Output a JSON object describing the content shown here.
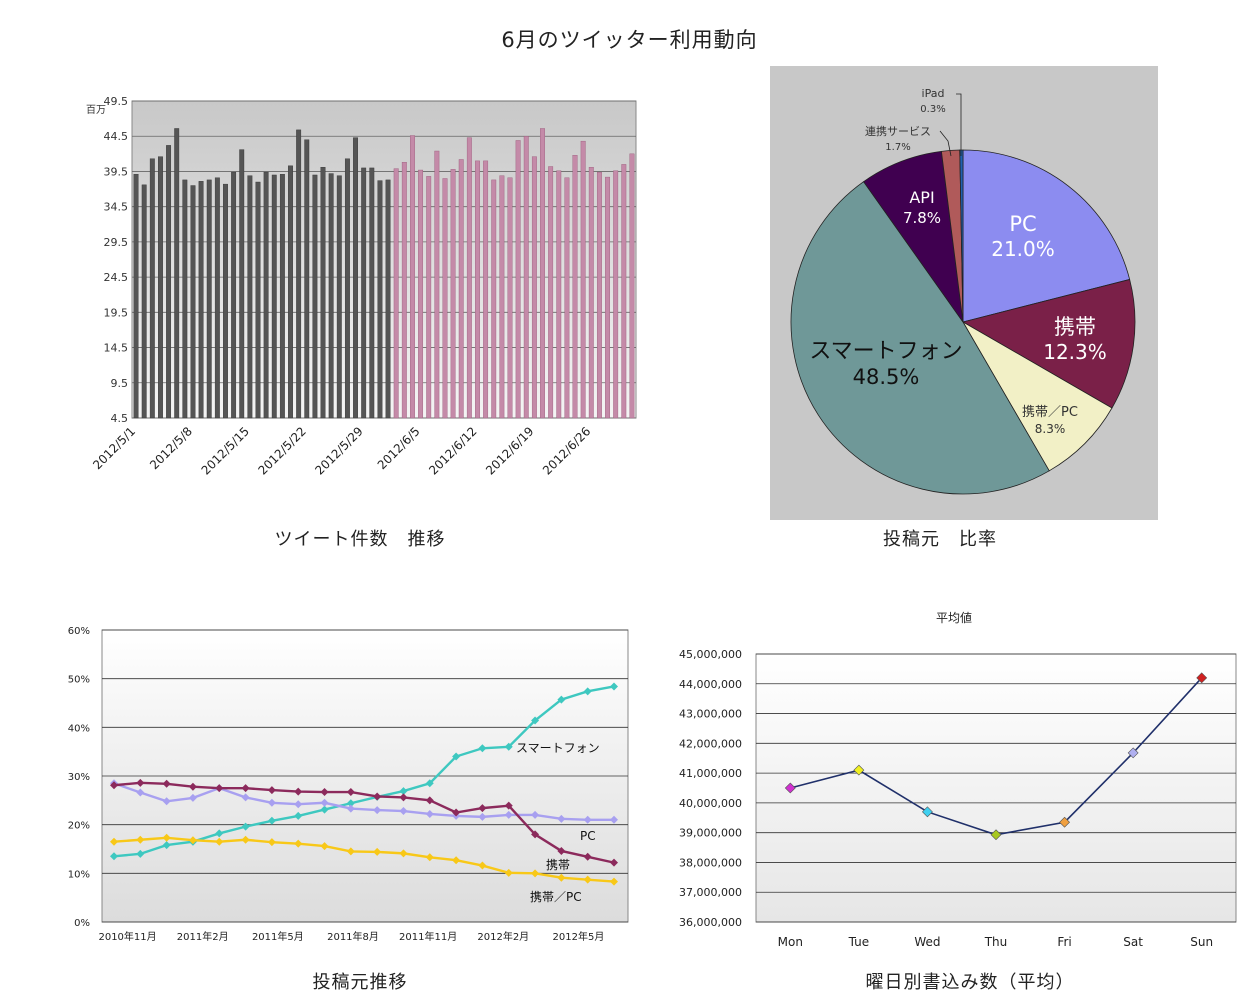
{
  "page_title": "6月のツイッター利用動向",
  "captions": {
    "tweets": "ツイート件数　推移",
    "source_ratio": "投稿元　比率",
    "source_trend": "投稿元推移",
    "weekday": "曜日別書込み数（平均）"
  },
  "chart_data": [
    {
      "id": "tweets",
      "type": "bar",
      "ylabel": "百万",
      "ylim": [
        4.5,
        49.5
      ],
      "yticks": [
        "49.5",
        "44.5",
        "39.5",
        "34.5",
        "29.5",
        "24.5",
        "19.5",
        "14.5",
        "9.5",
        "4.5"
      ],
      "xtick_labels": [
        "2012/5/1",
        "2012/5/8",
        "2012/5/15",
        "2012/5/22",
        "2012/5/29",
        "2012/6/5",
        "2012/6/12",
        "2012/6/19",
        "2012/6/26"
      ],
      "xtick_index": [
        0,
        7,
        14,
        21,
        28,
        35,
        42,
        49,
        56
      ],
      "colors": {
        "may": "#555555",
        "june": "#c48aa8"
      },
      "may_values": [
        39.1,
        37.6,
        41.3,
        41.6,
        43.2,
        45.6,
        38.3,
        37.5,
        38.1,
        38.3,
        38.6,
        37.7,
        39.4,
        42.6,
        38.9,
        38.0,
        39.4,
        39.0,
        39.1,
        40.3,
        45.4,
        44.0,
        39.0,
        40.1,
        39.2,
        38.9,
        41.3,
        44.3,
        40.0,
        40.0,
        38.2,
        38.3
      ],
      "june_values": [
        39.9,
        40.8,
        44.6,
        39.7,
        38.8,
        42.4,
        38.5,
        39.8,
        41.2,
        44.3,
        41.0,
        41.0,
        38.3,
        38.9,
        38.6,
        43.9,
        44.5,
        41.6,
        45.6,
        40.2,
        39.6,
        38.6,
        41.8,
        43.8,
        40.1,
        39.4,
        38.7,
        39.6,
        40.5,
        42.0
      ]
    },
    {
      "id": "source_ratio",
      "type": "pie",
      "slices": [
        {
          "label": "PC",
          "value": 21.0,
          "pct": "21.0%",
          "color": "#8c8cf0"
        },
        {
          "label": "携帯",
          "value": 12.3,
          "pct": "12.3%",
          "color": "#7a2048"
        },
        {
          "label": "携帯／PC",
          "value": 8.3,
          "pct": "8.3%",
          "color": "#f2f0c6"
        },
        {
          "label": "スマートフォン",
          "value": 48.5,
          "pct": "48.5%",
          "color": "#6f9898"
        },
        {
          "label": "API",
          "value": 7.8,
          "pct": "7.8%",
          "color": "#400050"
        },
        {
          "label": "連携サービス",
          "value": 1.7,
          "pct": "1.7%",
          "color": "#b05a5a"
        },
        {
          "label": "iPad",
          "value": 0.3,
          "pct": "0.3%",
          "color": "#2060b0"
        }
      ]
    },
    {
      "id": "source_trend",
      "type": "line",
      "ylim": [
        0,
        60
      ],
      "yticks": [
        "60%",
        "50%",
        "40%",
        "30%",
        "20%",
        "10%",
        "0%"
      ],
      "xtick_labels": [
        "2010年11月",
        "2011年2月",
        "2011年5月",
        "2011年8月",
        "2011年11月",
        "2012年2月",
        "2012年5月"
      ],
      "series": [
        {
          "name": "スマートフォン",
          "color": "#3ec8c0",
          "values": [
            13.5,
            14,
            15.8,
            16.5,
            18.2,
            19.6,
            20.8,
            21.8,
            23.1,
            24.4,
            25.7,
            26.9,
            28.5,
            34,
            35.7,
            36,
            41.4,
            45.7,
            47.4,
            48.4
          ]
        },
        {
          "name": "PC",
          "color": "#a8a0f0",
          "values": [
            28.5,
            26.6,
            24.8,
            25.5,
            27.5,
            25.6,
            24.5,
            24.2,
            24.5,
            23.3,
            23,
            22.8,
            22.2,
            21.8,
            21.6,
            22,
            22,
            21.2,
            21,
            21
          ]
        },
        {
          "name": "携帯",
          "color": "#8c2a5c",
          "values": [
            28.1,
            28.6,
            28.4,
            27.8,
            27.5,
            27.5,
            27.1,
            26.8,
            26.7,
            26.7,
            25.8,
            25.6,
            25,
            22.5,
            23.4,
            23.9,
            18,
            14.6,
            13.4,
            12.2
          ]
        },
        {
          "name": "携帯／PC",
          "color": "#f8c818",
          "values": [
            16.5,
            16.9,
            17.3,
            16.8,
            16.5,
            16.9,
            16.4,
            16.1,
            15.6,
            14.5,
            14.4,
            14.1,
            13.3,
            12.7,
            11.6,
            10.1,
            10,
            9.1,
            8.7,
            8.3
          ]
        }
      ]
    },
    {
      "id": "weekday",
      "type": "line",
      "title": "平均値",
      "ylim": [
        36000000,
        45000000
      ],
      "yticks": [
        "45,000,000",
        "44,000,000",
        "43,000,000",
        "42,000,000",
        "41,000,000",
        "40,000,000",
        "39,000,000",
        "38,000,000",
        "37,000,000",
        "36,000,000"
      ],
      "categories": [
        "Mon",
        "Tue",
        "Wed",
        "Thu",
        "Fri",
        "Sat",
        "Sun"
      ],
      "values": [
        40500000,
        41100000,
        39700000,
        38930000,
        39350000,
        41680000,
        44200000
      ],
      "line_color": "#20306a",
      "marker_colors": [
        "#d030d0",
        "#f0f020",
        "#40d0f0",
        "#a8c820",
        "#f0a040",
        "#b0b0f0",
        "#d02020"
      ]
    }
  ]
}
